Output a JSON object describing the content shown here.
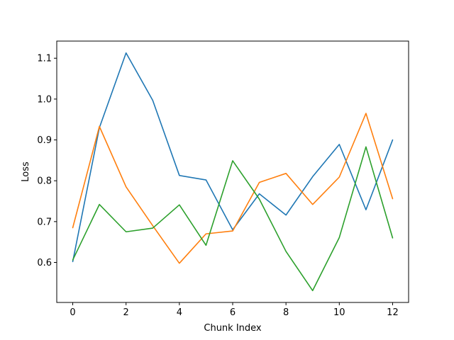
{
  "chart_data": {
    "type": "line",
    "title": "",
    "xlabel": "Chunk Index",
    "ylabel": "Loss",
    "x": [
      0,
      1,
      2,
      3,
      4,
      5,
      6,
      7,
      8,
      9,
      10,
      11,
      12
    ],
    "xlim": [
      -0.6,
      12.6
    ],
    "ylim": [
      0.502,
      1.142
    ],
    "xticks": [
      0,
      2,
      4,
      6,
      8,
      10,
      12
    ],
    "yticks": [
      0.6,
      0.7,
      0.8,
      0.9,
      1.0,
      1.1
    ],
    "ytick_labels": [
      "0.6",
      "0.7",
      "0.8",
      "0.9",
      "1.0",
      "1.1"
    ],
    "grid": false,
    "series": [
      {
        "color": "#1f77b4",
        "values": [
          0.602,
          0.93,
          1.113,
          0.997,
          0.813,
          0.802,
          0.68,
          0.768,
          0.716,
          0.81,
          0.889,
          0.729,
          0.9
        ]
      },
      {
        "color": "#ff7f0e",
        "values": [
          0.685,
          0.933,
          0.785,
          0.69,
          0.598,
          0.67,
          0.677,
          0.796,
          0.818,
          0.742,
          0.809,
          0.965,
          0.756
        ]
      },
      {
        "color": "#2ca02c",
        "values": [
          0.606,
          0.742,
          0.675,
          0.684,
          0.741,
          0.642,
          0.849,
          0.755,
          0.627,
          0.531,
          0.661,
          0.883,
          0.66
        ]
      }
    ]
  }
}
